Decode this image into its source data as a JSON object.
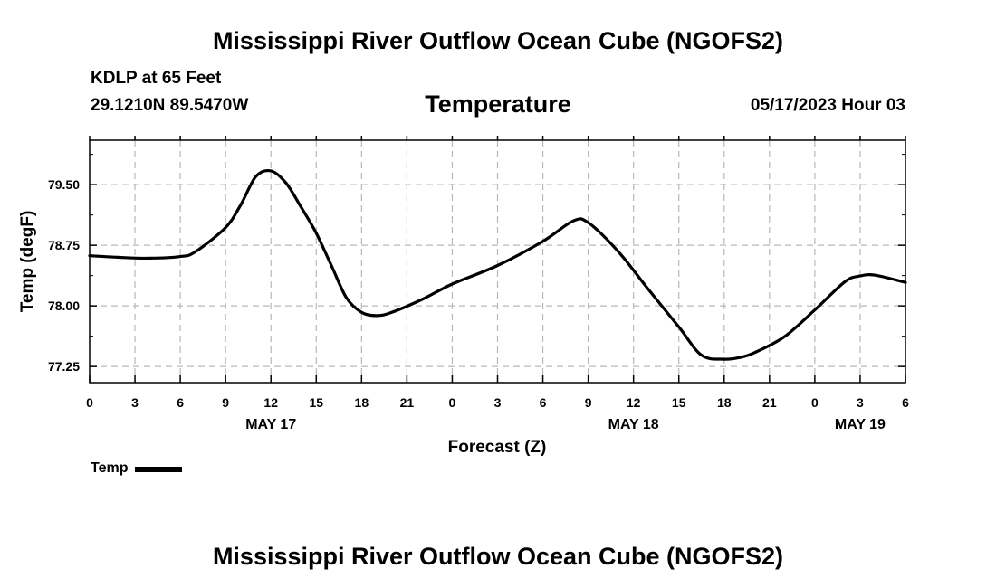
{
  "header": {
    "title": "Mississippi River Outflow Ocean Cube (NGOFS2)",
    "station": "KDLP at 65 Feet",
    "coords": "29.1210N  89.5470W",
    "variable": "Temperature",
    "datetime": "05/17/2023 Hour 03"
  },
  "footer": {
    "title": "Mississippi River Outflow Ocean Cube (NGOFS2)"
  },
  "legend": {
    "label": "Temp"
  },
  "chart_data": {
    "type": "line",
    "title": "Temperature",
    "xlabel": "Forecast (Z)",
    "ylabel": "Temp (degF)",
    "x_unit": "hours from 00Z May 17",
    "xlim": [
      0,
      54
    ],
    "ylim": [
      77.05,
      80.05
    ],
    "grid": true,
    "x_ticks": [
      0,
      3,
      6,
      9,
      12,
      15,
      18,
      21,
      24,
      27,
      30,
      33,
      36,
      39,
      42,
      45,
      48,
      51,
      54
    ],
    "x_tick_labels": [
      "0",
      "3",
      "6",
      "9",
      "12",
      "15",
      "18",
      "21",
      "0",
      "3",
      "6",
      "9",
      "12",
      "15",
      "18",
      "21",
      "0",
      "3",
      "6"
    ],
    "y_ticks": [
      77.25,
      78.0,
      78.75,
      79.5
    ],
    "y_tick_labels": [
      "77.25",
      "78.00",
      "78.75",
      "79.50"
    ],
    "day_labels": [
      {
        "x": 12,
        "label": "MAY 17"
      },
      {
        "x": 36,
        "label": "MAY 18"
      },
      {
        "x": 51,
        "label": "MAY 19"
      }
    ],
    "series": [
      {
        "name": "Temp",
        "color": "#000000",
        "x": [
          0,
          2,
          4,
          6,
          7,
          9,
          10,
          11,
          12,
          13,
          14,
          15,
          16,
          17,
          18,
          19,
          20,
          22,
          24,
          27,
          30,
          32,
          33,
          35,
          37,
          39,
          40.5,
          42,
          43,
          44,
          46,
          48,
          50,
          51,
          52,
          54
        ],
        "values": [
          78.62,
          78.6,
          78.59,
          78.61,
          78.67,
          78.97,
          79.25,
          79.6,
          79.67,
          79.52,
          79.22,
          78.9,
          78.5,
          78.1,
          77.92,
          77.88,
          77.92,
          78.08,
          78.27,
          78.5,
          78.8,
          79.05,
          79.03,
          78.67,
          78.2,
          77.74,
          77.39,
          77.34,
          77.36,
          77.42,
          77.62,
          77.95,
          78.3,
          78.37,
          78.38,
          78.29
        ]
      }
    ]
  }
}
